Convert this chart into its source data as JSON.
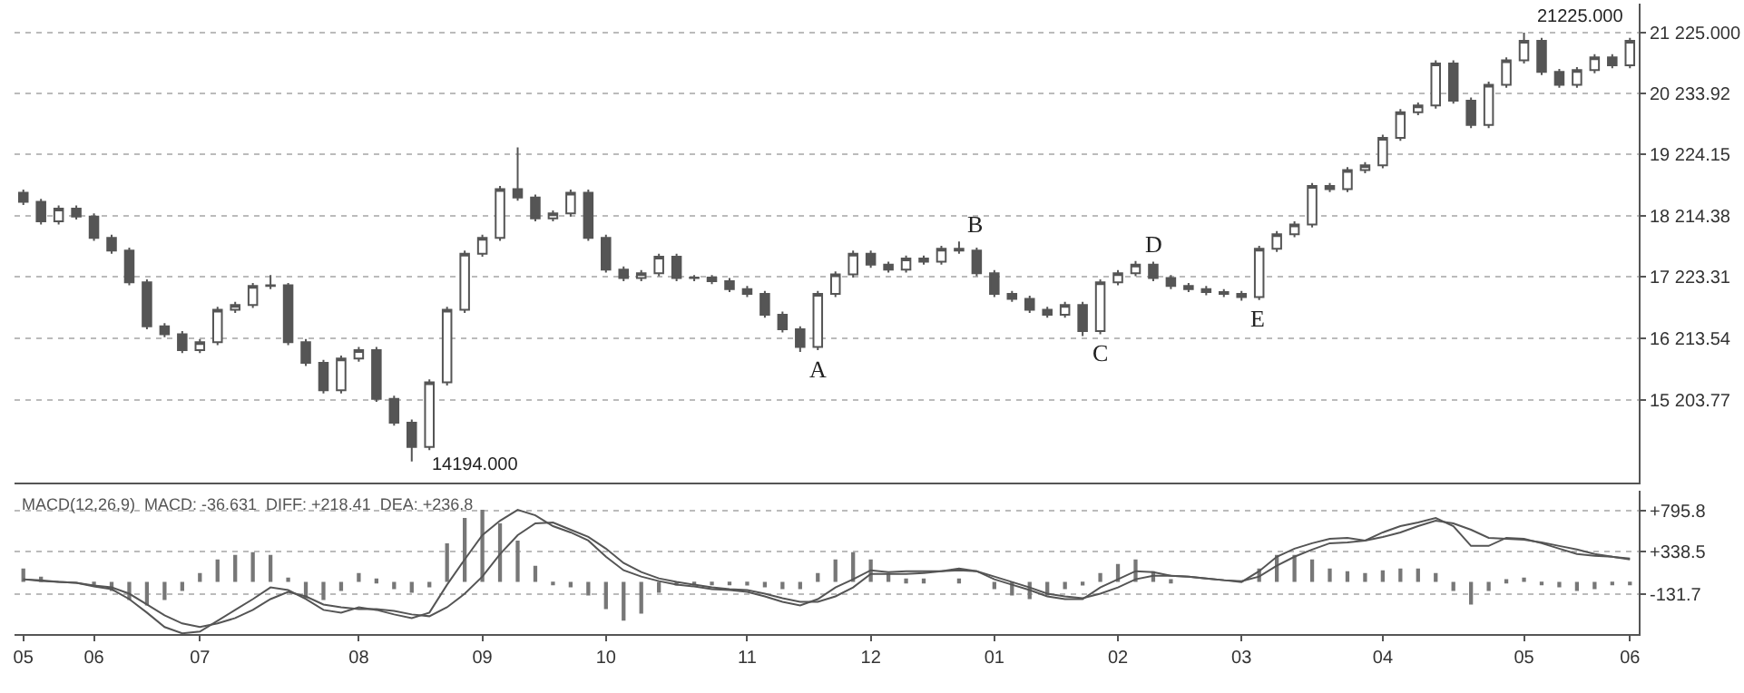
{
  "chart_data": [
    {
      "type": "candlestick",
      "color": "#555555",
      "grid": "y",
      "tick_labels": "y",
      "categories": [
        "05",
        null,
        null,
        null,
        "06",
        null,
        null,
        null,
        null,
        null,
        "07",
        null,
        null,
        null,
        null,
        null,
        null,
        null,
        null,
        "08",
        null,
        null,
        null,
        null,
        null,
        null,
        "09",
        null,
        null,
        null,
        null,
        null,
        null,
        "10",
        null,
        null,
        null,
        null,
        null,
        null,
        null,
        "11",
        null,
        null,
        null,
        null,
        null,
        null,
        "12",
        null,
        null,
        null,
        null,
        null,
        null,
        "01",
        null,
        null,
        null,
        null,
        null,
        null,
        "02",
        null,
        null,
        null,
        null,
        null,
        null,
        "03",
        null,
        null,
        null,
        null,
        null,
        null,
        null,
        "04",
        null,
        null,
        null,
        null,
        null,
        null,
        null,
        "05",
        null,
        null,
        null,
        null,
        null,
        "06"
      ],
      "ohlc": [
        [
          18600,
          18650,
          18400,
          18450
        ],
        [
          18450,
          18500,
          18080,
          18130
        ],
        [
          18130,
          18390,
          18080,
          18340
        ],
        [
          18340,
          18390,
          18160,
          18210
        ],
        [
          18210,
          18260,
          17810,
          17860
        ],
        [
          17860,
          17910,
          17600,
          17650
        ],
        [
          17650,
          17700,
          17080,
          17130
        ],
        [
          17130,
          17180,
          16360,
          16410
        ],
        [
          16410,
          16460,
          16230,
          16280
        ],
        [
          16280,
          16330,
          15970,
          16020
        ],
        [
          16020,
          16200,
          15970,
          16150
        ],
        [
          16150,
          16730,
          16100,
          16680
        ],
        [
          16680,
          16810,
          16630,
          16760
        ],
        [
          16760,
          17120,
          16710,
          17070
        ],
        [
          17070,
          17250,
          17020,
          17080
        ],
        [
          17080,
          17120,
          16100,
          16150
        ],
        [
          16150,
          16200,
          15760,
          15810
        ],
        [
          15810,
          15860,
          15310,
          15360
        ],
        [
          15360,
          15930,
          15310,
          15880
        ],
        [
          15880,
          16070,
          15830,
          16020
        ],
        [
          16020,
          16070,
          15170,
          15220
        ],
        [
          15220,
          15270,
          14780,
          14830
        ],
        [
          14830,
          14880,
          14194,
          14430
        ],
        [
          14430,
          15540,
          14380,
          15490
        ],
        [
          15490,
          16730,
          15440,
          16680
        ],
        [
          16680,
          17650,
          16630,
          17600
        ],
        [
          17600,
          17910,
          17550,
          17860
        ],
        [
          17860,
          18710,
          17810,
          18660
        ],
        [
          18660,
          19343,
          18470,
          18520
        ],
        [
          18520,
          18570,
          18130,
          18180
        ],
        [
          18180,
          18310,
          18130,
          18260
        ],
        [
          18260,
          18650,
          18210,
          18600
        ],
        [
          18600,
          18650,
          17810,
          17860
        ],
        [
          17860,
          17910,
          17290,
          17340
        ],
        [
          17340,
          17390,
          17150,
          17200
        ],
        [
          17200,
          17330,
          17150,
          17280
        ],
        [
          17280,
          17600,
          17230,
          17550
        ],
        [
          17550,
          17600,
          17150,
          17200
        ],
        [
          17200,
          17250,
          17150,
          17210
        ],
        [
          17210,
          17250,
          17100,
          17150
        ],
        [
          17150,
          17200,
          16970,
          17020
        ],
        [
          17020,
          17070,
          16890,
          16940
        ],
        [
          16940,
          16990,
          16550,
          16600
        ],
        [
          16600,
          16650,
          16310,
          16360
        ],
        [
          16360,
          16410,
          15990,
          16070
        ],
        [
          16070,
          16990,
          16020,
          16940
        ],
        [
          16940,
          17310,
          16890,
          17260
        ],
        [
          17260,
          17650,
          17210,
          17600
        ],
        [
          17600,
          17650,
          17370,
          17420
        ],
        [
          17420,
          17470,
          17290,
          17340
        ],
        [
          17340,
          17570,
          17290,
          17520
        ],
        [
          17520,
          17570,
          17420,
          17470
        ],
        [
          17470,
          17730,
          17420,
          17680
        ],
        [
          17680,
          17800,
          17600,
          17650
        ],
        [
          17650,
          17700,
          17230,
          17280
        ],
        [
          17280,
          17330,
          16890,
          16940
        ],
        [
          16940,
          16990,
          16810,
          16860
        ],
        [
          16860,
          16910,
          16630,
          16680
        ],
        [
          16680,
          16730,
          16550,
          16600
        ],
        [
          16600,
          16810,
          16550,
          16760
        ],
        [
          16760,
          16810,
          16250,
          16330
        ],
        [
          16330,
          17180,
          16280,
          17130
        ],
        [
          17130,
          17330,
          17080,
          17280
        ],
        [
          17280,
          17480,
          17230,
          17420
        ],
        [
          17420,
          17470,
          17150,
          17200
        ],
        [
          17200,
          17250,
          17020,
          17070
        ],
        [
          17070,
          17120,
          16970,
          17020
        ],
        [
          17020,
          17070,
          16920,
          16970
        ],
        [
          16970,
          17020,
          16890,
          16940
        ],
        [
          16940,
          16990,
          16830,
          16890
        ],
        [
          16890,
          17730,
          16840,
          17680
        ],
        [
          17680,
          17970,
          17630,
          17920
        ],
        [
          17920,
          18130,
          17870,
          18080
        ],
        [
          18080,
          18760,
          18030,
          18710
        ],
        [
          18710,
          18760,
          18610,
          18660
        ],
        [
          18660,
          19020,
          18610,
          18970
        ],
        [
          18970,
          19100,
          18920,
          19050
        ],
        [
          19050,
          19550,
          19000,
          19500
        ],
        [
          19500,
          19970,
          19450,
          19920
        ],
        [
          19920,
          20080,
          19870,
          20030
        ],
        [
          20030,
          20770,
          19980,
          20720
        ],
        [
          20720,
          20770,
          20060,
          20110
        ],
        [
          20110,
          20160,
          19660,
          19710
        ],
        [
          19710,
          20420,
          19660,
          20370
        ],
        [
          20370,
          20820,
          20320,
          20770
        ],
        [
          20770,
          21225,
          20720,
          21090
        ],
        [
          21090,
          21140,
          20530,
          20580
        ],
        [
          20580,
          20630,
          20320,
          20370
        ],
        [
          20370,
          20660,
          20320,
          20610
        ],
        [
          20610,
          20870,
          20560,
          20820
        ],
        [
          20820,
          20870,
          20640,
          20690
        ],
        [
          20690,
          21140,
          20640,
          21090
        ]
      ],
      "ylim": [
        13850,
        21700
      ],
      "yticks": [
        {
          "value": 15203.77,
          "label": "15 203.77"
        },
        {
          "value": 16213.54,
          "label": "16 213.54"
        },
        {
          "value": 17223.31,
          "label": "17 223.31"
        },
        {
          "value": 18214.38,
          "label": "18 214.38"
        },
        {
          "value": 19224.15,
          "label": "19 224.15"
        },
        {
          "value": 20233.92,
          "label": "20 233.92"
        },
        {
          "value": 21225,
          "label": "21 225.000"
        }
      ],
      "annotations": [
        "14194.000",
        "21225.000",
        {
          "text": "A",
          "y": 15990
        },
        {
          "text": "B",
          "y": 17800
        },
        {
          "text": "C",
          "y": 16250
        },
        {
          "text": "D",
          "y": 17480
        },
        {
          "text": "E",
          "y": 16830
        }
      ]
    },
    {
      "type": "line",
      "grid": "y",
      "categories": [
        "05",
        null,
        null,
        null,
        "06",
        null,
        null,
        null,
        null,
        null,
        "07",
        null,
        null,
        null,
        null,
        null,
        null,
        null,
        null,
        "08",
        null,
        null,
        null,
        null,
        null,
        null,
        "09",
        null,
        null,
        null,
        null,
        null,
        null,
        "10",
        null,
        null,
        null,
        null,
        null,
        null,
        null,
        "11",
        null,
        null,
        null,
        null,
        null,
        null,
        "12",
        null,
        null,
        null,
        null,
        null,
        null,
        "01",
        null,
        null,
        null,
        null,
        null,
        null,
        "02",
        null,
        null,
        null,
        null,
        null,
        null,
        "03",
        null,
        null,
        null,
        null,
        null,
        null,
        null,
        "04",
        null,
        null,
        null,
        null,
        null,
        null,
        null,
        "05",
        null,
        null,
        null,
        null,
        null,
        "06"
      ],
      "ylim": [
        -580,
        1010
      ],
      "yticks": [
        {
          "value": -131.7,
          "label": "-131.7"
        },
        {
          "value": 338.5,
          "label": "+338.5"
        },
        {
          "value": 795.8,
          "label": "+795.8"
        }
      ],
      "annotations": [
        "MACD(12,26,9)  MACD: -36.631  DIFF: +218.41  DEA: +236.8"
      ],
      "series": [
        {
          "type": "bar",
          "color": "#777777",
          "values": [
            150,
            60,
            0,
            0,
            -40,
            -100,
            -200,
            -260,
            -200,
            -100,
            100,
            250,
            300,
            330,
            300,
            50,
            -180,
            -200,
            -100,
            100,
            40,
            -80,
            -120,
            -60,
            430,
            710,
            800,
            650,
            460,
            180,
            -20,
            -60,
            -150,
            -300,
            -430,
            -350,
            -120,
            -40,
            -40,
            -30,
            -20,
            -40,
            -60,
            -80,
            -80,
            100,
            250,
            330,
            250,
            100,
            40,
            40,
            0,
            40,
            0,
            -80,
            -150,
            -190,
            -150,
            -80,
            -40,
            100,
            200,
            250,
            120,
            30,
            0,
            0,
            0,
            0,
            150,
            300,
            300,
            250,
            150,
            120,
            100,
            130,
            150,
            150,
            100,
            -100,
            -250,
            -100,
            30,
            50,
            -20,
            -60,
            -100,
            -80,
            -30,
            -20
          ]
        },
        {
          "type": "line",
          "color": "#555555",
          "values": [
            30,
            10,
            0,
            -10,
            -50,
            -80,
            -190,
            -340,
            -500,
            -570,
            -550,
            -430,
            -310,
            -190,
            -60,
            -90,
            -190,
            -310,
            -340,
            -280,
            -310,
            -360,
            -400,
            -340,
            -30,
            250,
            520,
            680,
            800,
            740,
            620,
            550,
            460,
            280,
            130,
            60,
            10,
            -30,
            -50,
            -80,
            -90,
            -110,
            -160,
            -220,
            -260,
            -190,
            -60,
            30,
            130,
            110,
            120,
            120,
            120,
            150,
            120,
            30,
            -30,
            -90,
            -160,
            -190,
            -190,
            -60,
            30,
            120,
            110,
            70,
            60,
            40,
            20,
            0,
            120,
            280,
            370,
            430,
            480,
            490,
            460,
            550,
            620,
            660,
            710,
            620,
            400,
            400,
            490,
            480,
            430,
            370,
            310,
            290,
            280,
            250
          ]
        },
        {
          "type": "line",
          "color": "#555555",
          "values": [
            30,
            20,
            0,
            -10,
            -40,
            -60,
            -130,
            -250,
            -370,
            -460,
            -500,
            -460,
            -400,
            -310,
            -190,
            -110,
            -160,
            -250,
            -280,
            -300,
            -300,
            -320,
            -360,
            -380,
            -280,
            -130,
            60,
            310,
            520,
            650,
            660,
            580,
            500,
            370,
            210,
            110,
            40,
            0,
            -30,
            -60,
            -80,
            -90,
            -130,
            -180,
            -220,
            -220,
            -160,
            -60,
            90,
            90,
            90,
            100,
            120,
            130,
            120,
            60,
            0,
            -60,
            -130,
            -160,
            -180,
            -130,
            -60,
            30,
            70,
            70,
            60,
            40,
            20,
            10,
            60,
            180,
            280,
            360,
            430,
            440,
            460,
            500,
            550,
            620,
            680,
            650,
            580,
            490,
            480,
            470,
            440,
            400,
            360,
            310,
            280,
            260
          ]
        }
      ]
    }
  ]
}
